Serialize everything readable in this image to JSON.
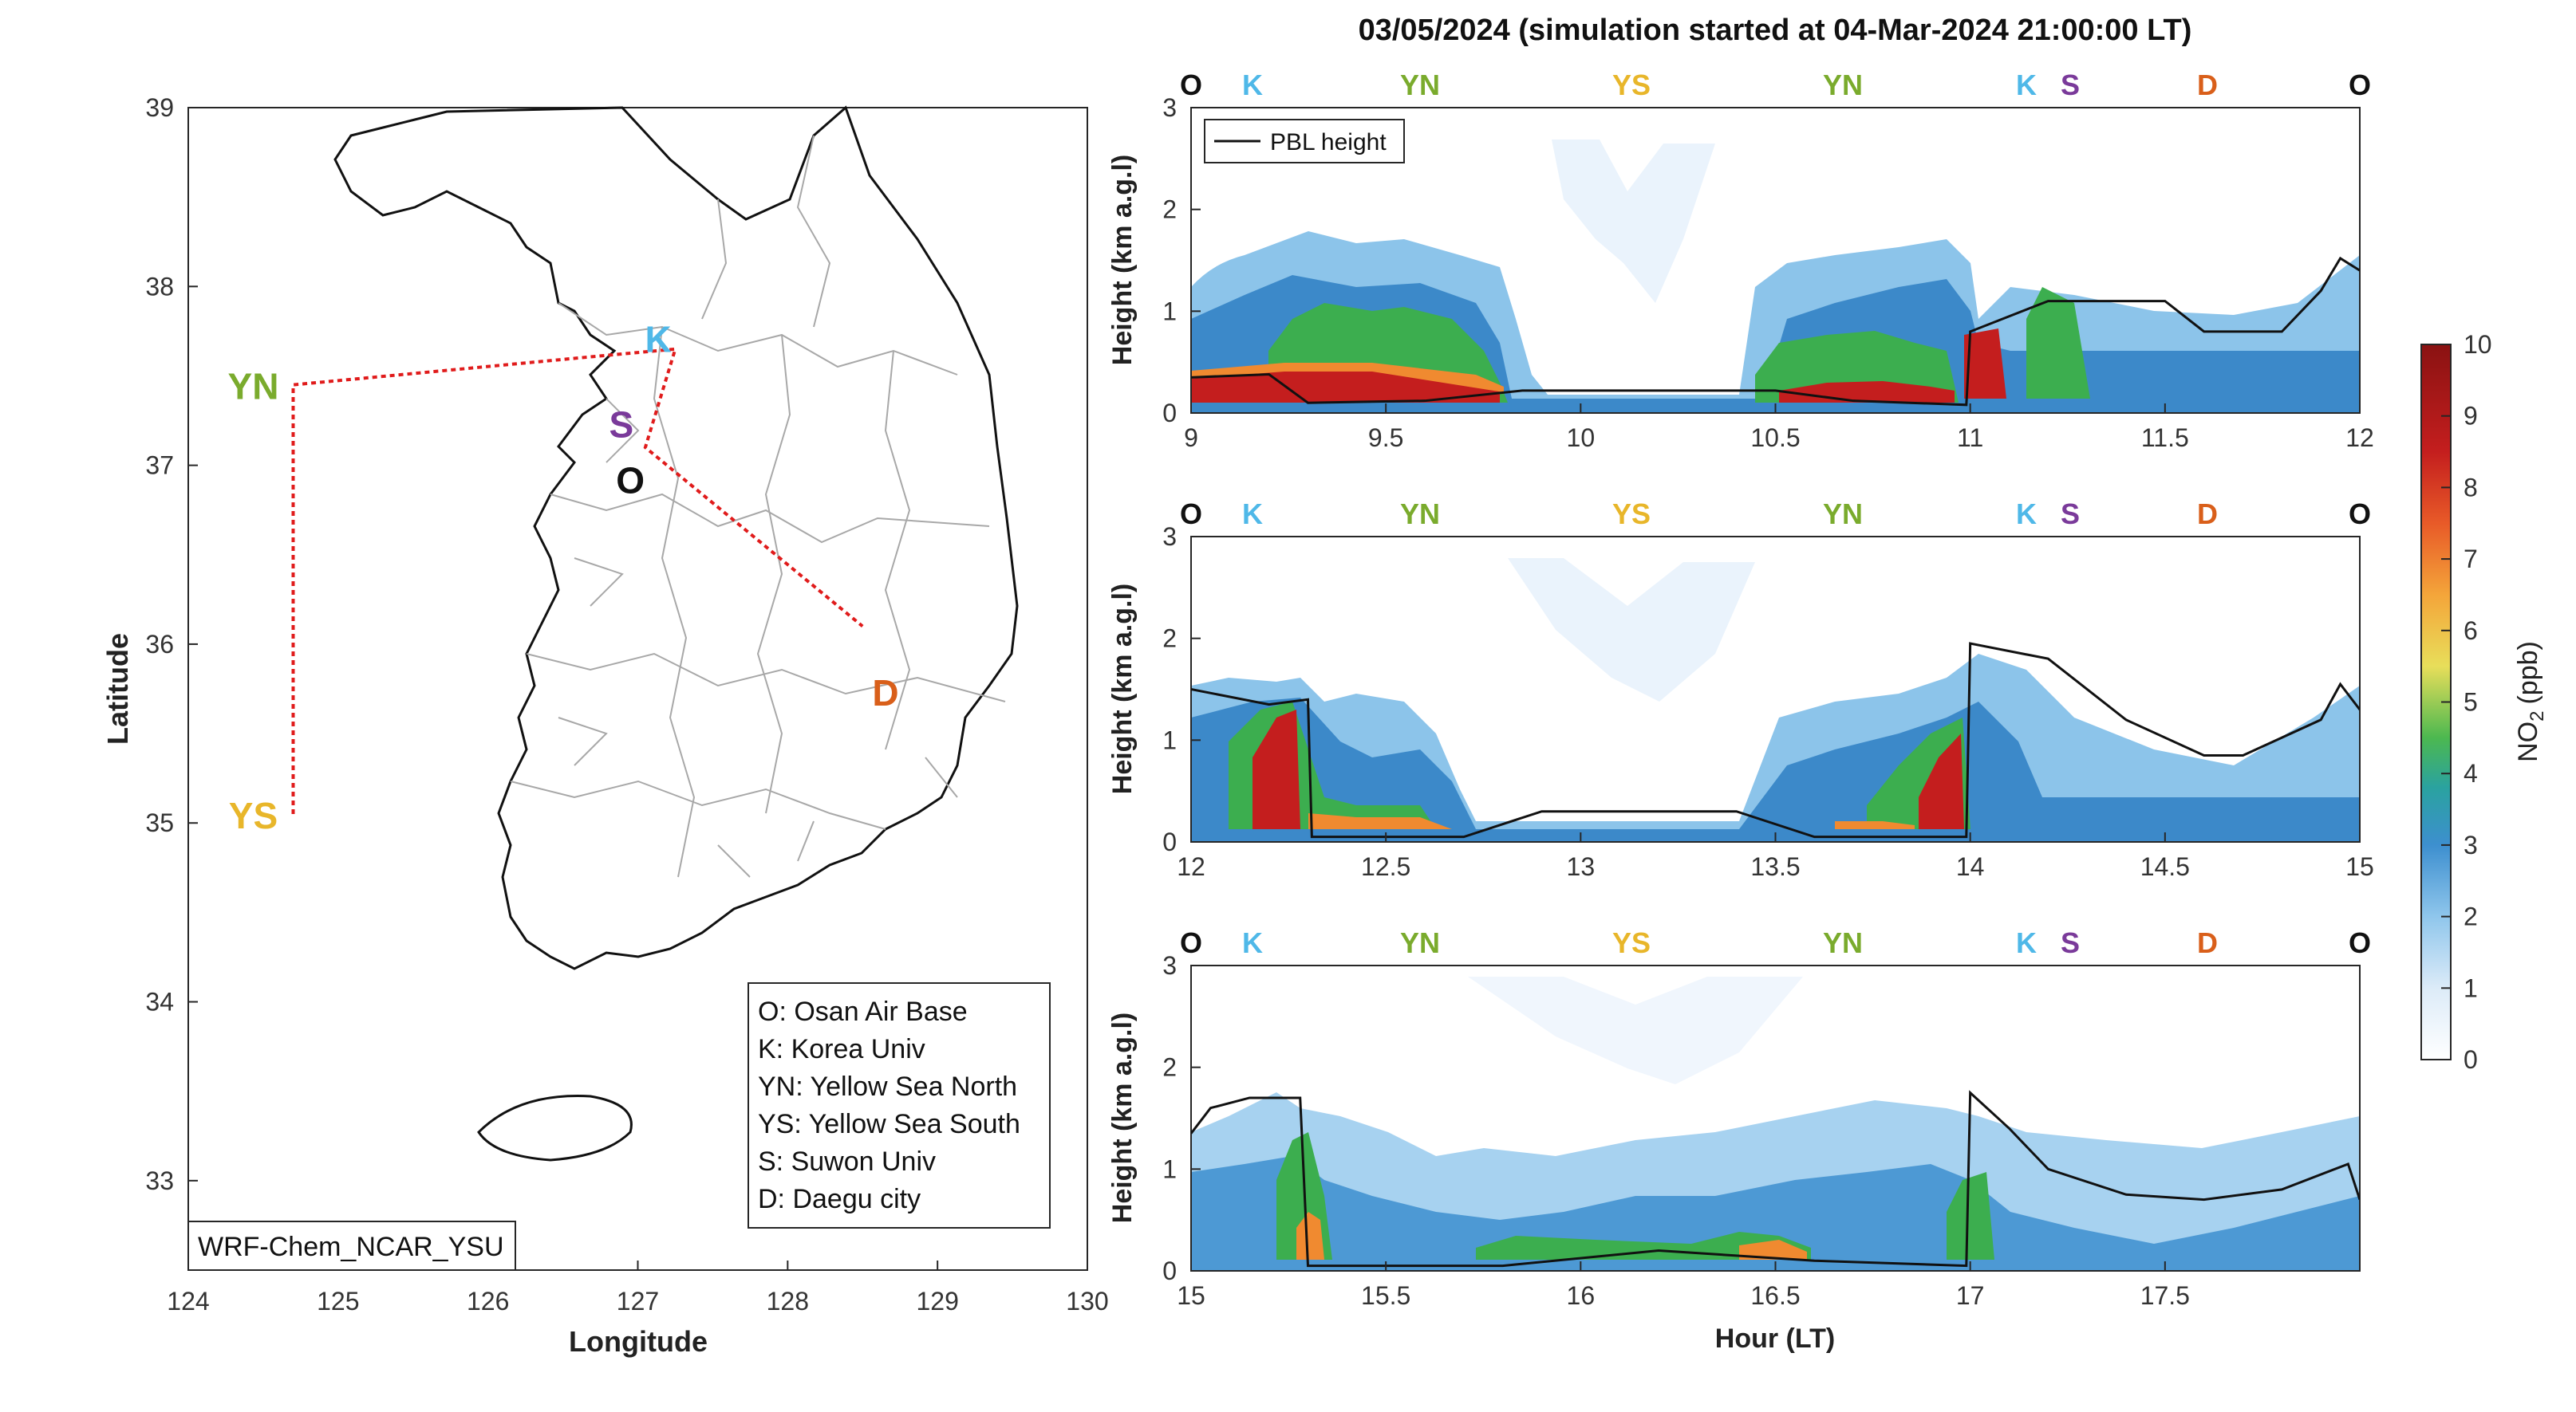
{
  "figure": {
    "title": "03/05/2024 (simulation started at 04-Mar-2024 21:00:00 LT)"
  },
  "map": {
    "xlabel": "Longitude",
    "ylabel": "Latitude",
    "xticks": [
      124,
      125,
      126,
      127,
      128,
      129,
      130
    ],
    "yticks": [
      33,
      34,
      35,
      36,
      37,
      38,
      39
    ],
    "xlim": [
      124,
      130
    ],
    "ylim": [
      32.5,
      39
    ],
    "model_label": "WRF-Chem_NCAR_YSU",
    "sites": [
      {
        "code": "YN",
        "lon": 124.7,
        "lat": 37.45,
        "color": "#7aab2d"
      },
      {
        "code": "YS",
        "lon": 124.7,
        "lat": 35.05,
        "color": "#e8b62a"
      },
      {
        "code": "K",
        "lon": 127.03,
        "lat": 37.59,
        "color": "#4fb8e8"
      },
      {
        "code": "S",
        "lon": 126.97,
        "lat": 37.29,
        "color": "#7a3a9a"
      },
      {
        "code": "O",
        "lon": 127.03,
        "lat": 37.09,
        "color": "#111111"
      },
      {
        "code": "D",
        "lon": 128.6,
        "lat": 35.87,
        "color": "#d95f1a"
      }
    ],
    "route": [
      [
        124.7,
        35.05
      ],
      [
        124.7,
        37.45
      ],
      [
        126.6,
        37.6
      ],
      [
        127.25,
        37.65
      ],
      [
        127.05,
        37.1
      ],
      [
        128.5,
        36.1
      ]
    ],
    "legend": [
      "O: Osan Air Base",
      "K: Korea Univ",
      "YN: Yellow Sea North",
      "YS: Yellow Sea South",
      "S: Suwon Univ",
      "D: Daegu city"
    ]
  },
  "colorbar": {
    "label": "NO",
    "label_sub": "2",
    "label_unit": "(ppb)",
    "ticks": [
      0,
      1,
      2,
      3,
      4,
      5,
      6,
      7,
      8,
      9,
      10
    ]
  },
  "chart_data": {
    "type": "heatmap",
    "ylabel": "Height (km a.g.l)",
    "xlabel": "Hour (LT)",
    "legend_entry": "PBL height",
    "site_sequence": [
      {
        "code": "O",
        "color": "#111111"
      },
      {
        "code": "K",
        "color": "#4fb8e8"
      },
      {
        "code": "YN",
        "color": "#7aab2d"
      },
      {
        "code": "YS",
        "color": "#e8b62a"
      },
      {
        "code": "YN",
        "color": "#7aab2d"
      },
      {
        "code": "K",
        "color": "#4fb8e8"
      },
      {
        "code": "S",
        "color": "#7a3a9a"
      },
      {
        "code": "D",
        "color": "#d95f1a"
      },
      {
        "code": "O",
        "color": "#111111"
      }
    ],
    "panels": [
      {
        "xlim": [
          9,
          12
        ],
        "ylim": [
          0,
          3
        ],
        "xticks": [
          "9",
          "9.5",
          "10",
          "10.5",
          "11",
          "11.5",
          "12"
        ],
        "yticks": [
          "0",
          "1",
          "2",
          "3"
        ],
        "pbl": [
          [
            9,
            0.35
          ],
          [
            9.2,
            0.38
          ],
          [
            9.3,
            0.1
          ],
          [
            9.6,
            0.12
          ],
          [
            9.85,
            0.22
          ],
          [
            10.5,
            0.22
          ],
          [
            10.7,
            0.12
          ],
          [
            10.99,
            0.08
          ],
          [
            11.0,
            0.8
          ],
          [
            11.2,
            1.1
          ],
          [
            11.5,
            1.1
          ],
          [
            11.6,
            0.8
          ],
          [
            11.8,
            0.8
          ],
          [
            11.9,
            1.2
          ],
          [
            11.95,
            1.52
          ],
          [
            12,
            1.4
          ]
        ]
      },
      {
        "xlim": [
          12,
          15
        ],
        "ylim": [
          0,
          3
        ],
        "xticks": [
          "12",
          "12.5",
          "13",
          "13.5",
          "14",
          "14.5",
          "15"
        ],
        "yticks": [
          "0",
          "1",
          "2",
          "3"
        ],
        "pbl": [
          [
            12,
            1.5
          ],
          [
            12.2,
            1.35
          ],
          [
            12.3,
            1.4
          ],
          [
            12.31,
            0.05
          ],
          [
            12.7,
            0.05
          ],
          [
            12.9,
            0.3
          ],
          [
            13.4,
            0.3
          ],
          [
            13.6,
            0.05
          ],
          [
            13.99,
            0.05
          ],
          [
            14.0,
            1.95
          ],
          [
            14.2,
            1.8
          ],
          [
            14.4,
            1.2
          ],
          [
            14.6,
            0.85
          ],
          [
            14.7,
            0.85
          ],
          [
            14.9,
            1.2
          ],
          [
            14.95,
            1.55
          ],
          [
            15,
            1.3
          ]
        ]
      },
      {
        "xlim": [
          15,
          18
        ],
        "ylim": [
          0,
          3
        ],
        "xticks": [
          "15",
          "15.5",
          "16",
          "16.5",
          "17",
          "17.5"
        ],
        "yticks": [
          "0",
          "1",
          "2",
          "3"
        ],
        "pbl": [
          [
            15,
            1.35
          ],
          [
            15.05,
            1.6
          ],
          [
            15.15,
            1.7
          ],
          [
            15.28,
            1.7
          ],
          [
            15.3,
            0.05
          ],
          [
            15.8,
            0.05
          ],
          [
            16.2,
            0.2
          ],
          [
            16.6,
            0.1
          ],
          [
            16.99,
            0.05
          ],
          [
            17.0,
            1.75
          ],
          [
            17.1,
            1.4
          ],
          [
            17.2,
            1.0
          ],
          [
            17.4,
            0.75
          ],
          [
            17.6,
            0.7
          ],
          [
            17.8,
            0.8
          ],
          [
            17.97,
            1.05
          ],
          [
            18,
            0.7
          ]
        ]
      }
    ]
  }
}
